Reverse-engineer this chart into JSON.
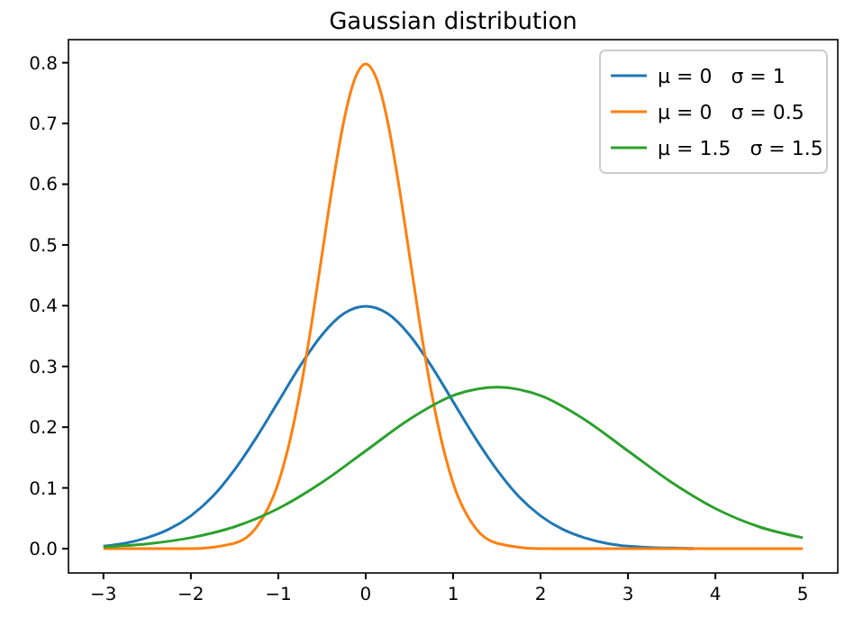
{
  "chart_data": {
    "type": "line",
    "title": "Gaussian distribution",
    "xlim": [
      -3.4,
      5.4
    ],
    "ylim": [
      -0.04,
      0.838
    ],
    "xticks": [
      {
        "value": -3,
        "label": "−3"
      },
      {
        "value": -2,
        "label": "−2"
      },
      {
        "value": -1,
        "label": "−1"
      },
      0,
      1,
      2,
      3,
      4,
      5
    ],
    "yticks": [
      {
        "value": 0,
        "label": "0.0"
      },
      {
        "value": 0.1,
        "label": "0.1"
      },
      {
        "value": 0.2,
        "label": "0.2"
      },
      {
        "value": 0.3,
        "label": "0.3"
      },
      {
        "value": 0.4,
        "label": "0.4"
      },
      {
        "value": 0.5,
        "label": "0.5"
      },
      {
        "value": 0.6,
        "label": "0.6"
      },
      {
        "value": 0.7,
        "label": "0.7"
      },
      {
        "value": 0.8,
        "label": "0.8"
      }
    ],
    "grid": false,
    "legend": "top right",
    "marker": "none",
    "line_style": "solid",
    "series": [
      {
        "name": "μ = 0   σ = 1",
        "color": "#1f77b4",
        "x": [
          -3,
          -2.75,
          -2.5,
          -2.25,
          -2,
          -1.75,
          -1.5,
          -1.25,
          -1,
          -0.75,
          -0.5,
          -0.25,
          0,
          0.25,
          0.5,
          0.75,
          1,
          1.25,
          1.5,
          1.75,
          2,
          2.25,
          2.5,
          2.75,
          3,
          3.25,
          3.5,
          3.75
        ],
        "values": [
          0.004,
          0.009,
          0.018,
          0.032,
          0.054,
          0.086,
          0.13,
          0.183,
          0.242,
          0.301,
          0.352,
          0.387,
          0.399,
          0.387,
          0.352,
          0.301,
          0.242,
          0.183,
          0.13,
          0.086,
          0.054,
          0.032,
          0.018,
          0.009,
          0.004,
          0.002,
          0.001,
          0
        ]
      },
      {
        "name": "μ = 0   σ = 0.5",
        "color": "#ff7f0e",
        "x": [
          -3,
          -2,
          -1.5,
          -1.25,
          -1,
          -0.875,
          -0.75,
          -0.625,
          -0.5,
          -0.375,
          -0.25,
          -0.125,
          0,
          0.125,
          0.25,
          0.375,
          0.5,
          0.625,
          0.75,
          0.875,
          1,
          1.25,
          1.5,
          2,
          3,
          4,
          5
        ],
        "values": [
          0,
          0,
          0.009,
          0.035,
          0.108,
          0.173,
          0.259,
          0.365,
          0.484,
          0.602,
          0.704,
          0.773,
          0.798,
          0.773,
          0.704,
          0.602,
          0.484,
          0.365,
          0.259,
          0.173,
          0.108,
          0.035,
          0.009,
          0,
          0,
          0,
          0
        ]
      },
      {
        "name": "μ = 1.5   σ = 1.5",
        "color": "#2ca02c",
        "x": [
          -3,
          -2.5,
          -2,
          -1.5,
          -1,
          -0.5,
          0,
          0.5,
          1,
          1.5,
          2,
          2.5,
          3,
          3.5,
          4,
          4.5,
          5
        ],
        "values": [
          0.003,
          0.008,
          0.018,
          0.036,
          0.066,
          0.109,
          0.161,
          0.213,
          0.252,
          0.266,
          0.252,
          0.213,
          0.161,
          0.109,
          0.066,
          0.036,
          0.018
        ]
      }
    ]
  }
}
